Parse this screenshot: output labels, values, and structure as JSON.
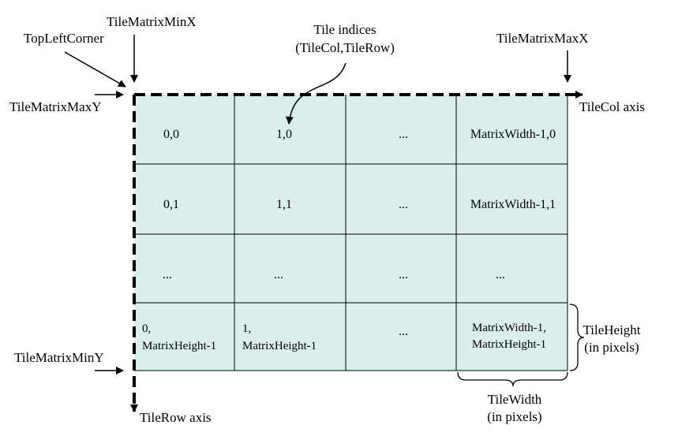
{
  "colors": {
    "cell_fill": "#dbeeee",
    "grid_line": "#000000",
    "axis_line": "#000000",
    "background": "#ffffff"
  },
  "labels": {
    "tile_matrix_min_x": "TileMatrixMinX",
    "tile_matrix_max_x": "TileMatrixMaxX",
    "tile_matrix_max_y": "TileMatrixMaxY",
    "tile_matrix_min_y": "TileMatrixMinY",
    "top_left_corner": "TopLeftCorner",
    "tile_indices_line1": "Tile indices",
    "tile_indices_line2": "(TileCol,TileRow)",
    "tilecol_axis": "TileCol axis",
    "tilerow_axis": "TileRow axis",
    "tile_height_line1": "TileHeight",
    "tile_height_line2": "(in pixels)",
    "tile_width_line1": "TileWidth",
    "tile_width_line2": "(in pixels)"
  },
  "grid": {
    "rows": [
      [
        "0,0",
        "1,0",
        "...",
        "MatrixWidth-1,0"
      ],
      [
        "0,1",
        "1,1",
        "...",
        "MatrixWidth-1,1"
      ],
      [
        "...",
        "...",
        "...",
        "..."
      ],
      [
        [
          "0,",
          "MatrixHeight-1"
        ],
        [
          "1,",
          "MatrixHeight-1"
        ],
        [
          "..."
        ],
        [
          "MatrixWidth-1,",
          "MatrixHeight-1"
        ]
      ]
    ]
  }
}
